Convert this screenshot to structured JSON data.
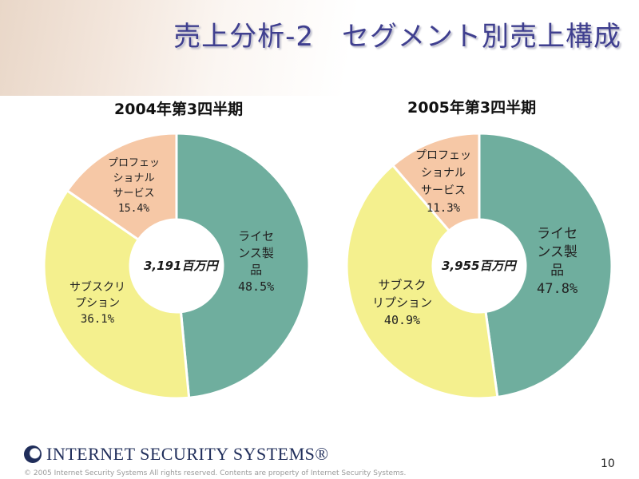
{
  "title": "売上分析-2　セグメント別売上構成",
  "colors": {
    "license": "#6fae9e",
    "subscription": "#f4f08e",
    "professional": "#f6c8a6",
    "title": "#3f3f8f"
  },
  "chart_data": [
    {
      "type": "pie",
      "title": "2004年第3四半期",
      "center_label": "3,191百万円",
      "slices": [
        {
          "label": "ライセンス製品",
          "display_text": "ライセ\nンス製\n品\n48.5%",
          "value": 48.5,
          "color_key": "license"
        },
        {
          "label": "サブスクリプション",
          "display_text": "サブスクリ\nプション\n36.1%",
          "value": 36.1,
          "color_key": "subscription"
        },
        {
          "label": "プロフェッショナルサービス",
          "display_text": "プロフェッ\nショナル\nサービス\n15.4%",
          "value": 15.4,
          "color_key": "professional"
        }
      ]
    },
    {
      "type": "pie",
      "title": "2005年第3四半期",
      "center_label": "3,955百万円",
      "slices": [
        {
          "label": "ライセンス製品",
          "display_text": "ライセ\nンス製\n品\n47.8%",
          "value": 47.8,
          "color_key": "license"
        },
        {
          "label": "サブスクリプション",
          "display_text": "サブスク\nリプション\n40.9%",
          "value": 40.9,
          "color_key": "subscription"
        },
        {
          "label": "プロフェッショナルサービス",
          "display_text": "プロフェッ\nショナル\nサービス\n11.3%",
          "value": 11.3,
          "color_key": "professional"
        }
      ]
    }
  ],
  "logo": {
    "text": "INTERNET SECURITY SYSTEMS®"
  },
  "footer": "© 2005 Internet Security Systems All rights reserved.  Contents are property of Internet Security Systems.",
  "page_number": "10"
}
